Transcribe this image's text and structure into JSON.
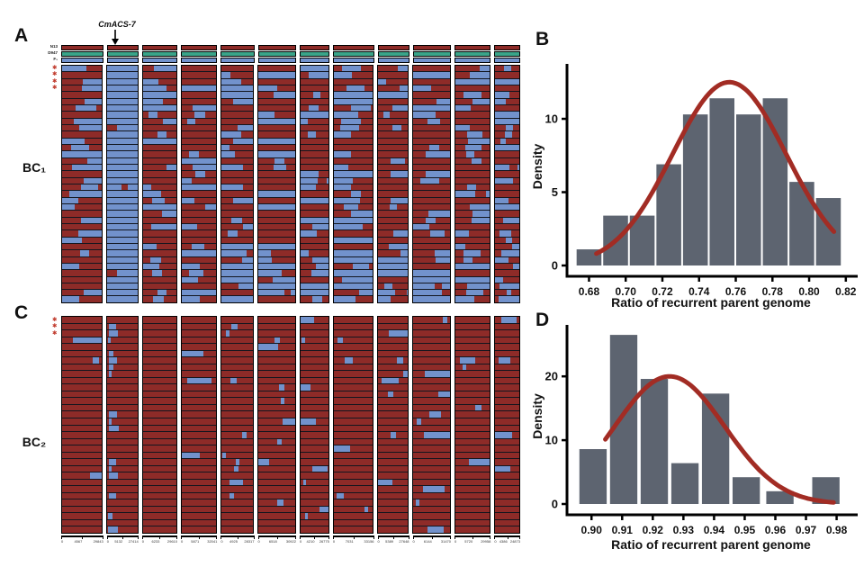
{
  "panels": {
    "a": {
      "label": "A",
      "generation": "BC₁",
      "gene": "CmACS-7",
      "parents": [
        "N13",
        "D947",
        "F₁"
      ],
      "star_glyph": "✱",
      "star_count": 4
    },
    "b": {
      "label": "B"
    },
    "c": {
      "label": "C",
      "generation": "BC₂",
      "star_glyph": "✱",
      "star_count": 3
    },
    "d": {
      "label": "D"
    }
  },
  "genotype": {
    "colors": {
      "recurrent": "#8e2b28",
      "donor": "#7292cc",
      "header_green": "#3aa489",
      "row_line": "#12161f",
      "star": "#c0392b"
    },
    "column_weights": [
      44,
      33,
      37,
      38,
      35,
      40,
      31,
      43,
      33,
      40,
      38,
      27
    ],
    "bc1": {
      "rows": 36,
      "seed": 1337,
      "donor_column": 1
    },
    "bc2": {
      "rows": 32,
      "seed": 20177,
      "introgression_column": 1
    },
    "position_axes": [
      [
        "0",
        "4567",
        "29843"
      ],
      [
        "0",
        "5132",
        "27414"
      ],
      [
        "0",
        "6233",
        "29610"
      ],
      [
        "0",
        "5871",
        "32041"
      ],
      [
        "0",
        "4925",
        "28317"
      ],
      [
        "0",
        "6518",
        "30922"
      ],
      [
        "0",
        "4210",
        "26775"
      ],
      [
        "0",
        "7031",
        "33156"
      ],
      [
        "0",
        "5389",
        "27648"
      ],
      [
        "0",
        "6144",
        "31470"
      ],
      [
        "0",
        "5720",
        "29958"
      ],
      [
        "0",
        "4386",
        "24873"
      ]
    ]
  },
  "chart_data": [
    {
      "panel": "B",
      "type": "bar",
      "subtype": "histogram_with_density_curve",
      "xlabel": "Ratio of recurrent parent genome",
      "ylabel": "Density",
      "x_domain": [
        0.668,
        0.825
      ],
      "x_ticks": [
        0.68,
        0.7,
        0.72,
        0.74,
        0.76,
        0.78,
        0.8,
        0.82
      ],
      "y_ticks": [
        0,
        5,
        10
      ],
      "y_max": 13.5,
      "bin_width": 0.0145,
      "bin_centers": [
        0.68,
        0.6945,
        0.709,
        0.7235,
        0.738,
        0.7525,
        0.767,
        0.7815,
        0.796,
        0.8105
      ],
      "values": [
        1.1,
        3.4,
        3.4,
        6.9,
        10.3,
        11.4,
        10.3,
        11.4,
        5.7,
        4.6
      ],
      "curve": {
        "mean": 0.7565,
        "sd": 0.031,
        "peak": 12.5,
        "x_start": 0.684,
        "x_end": 0.8135
      },
      "colors": {
        "bar": "#5d6470",
        "curve": "#a22c24",
        "axis": "#000000"
      }
    },
    {
      "panel": "D",
      "type": "bar",
      "subtype": "histogram_with_density_curve",
      "xlabel": "Ratio of recurrent parent genome",
      "ylabel": "Density",
      "x_domain": [
        0.892,
        0.986
      ],
      "x_ticks": [
        0.9,
        0.91,
        0.92,
        0.93,
        0.94,
        0.95,
        0.96,
        0.97,
        0.98
      ],
      "y_ticks": [
        0,
        10,
        20
      ],
      "y_max": 27.5,
      "bin_width": 0.0095,
      "bin_centers": [
        0.9005,
        0.9105,
        0.9205,
        0.9305,
        0.9405,
        0.9505,
        0.9615,
        0.9765
      ],
      "values": [
        8.6,
        26.5,
        19.6,
        6.4,
        17.3,
        4.2,
        2.0,
        4.2
      ],
      "curve": {
        "mean": 0.9255,
        "sd": 0.018,
        "peak": 20,
        "x_start": 0.9045,
        "x_end": 0.979
      },
      "colors": {
        "bar": "#5d6470",
        "curve": "#a22c24",
        "axis": "#000000"
      }
    }
  ]
}
